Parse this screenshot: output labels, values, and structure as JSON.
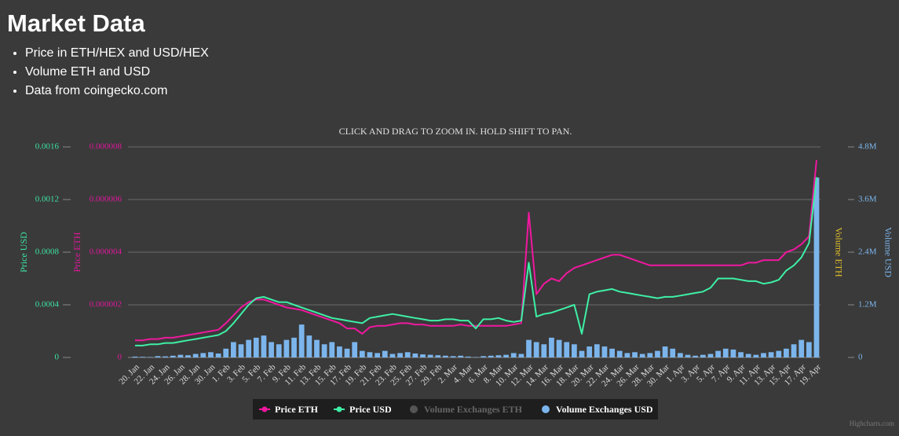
{
  "header": {
    "title": "Market Data",
    "bullets": [
      "Price in ETH/HEX and USD/HEX",
      "Volume ETH and USD",
      "Data from coingecko.com"
    ]
  },
  "chart_data": {
    "type": "line-bar-combo",
    "subtitle": "CLICK AND DRAG TO ZOOM IN. HOLD SHIFT TO PAN.",
    "credits": "Highcharts.com",
    "categories": [
      "20. Jan",
      null,
      "22. Jan",
      null,
      "24. Jan",
      null,
      "26. Jan",
      null,
      "28. Jan",
      null,
      "30. Jan",
      null,
      "1. Feb",
      null,
      "3. Feb",
      null,
      "5. Feb",
      null,
      "7. Feb",
      null,
      "9. Feb",
      null,
      "11. Feb",
      null,
      "13. Feb",
      null,
      "15. Feb",
      null,
      "17. Feb",
      null,
      "19. Feb",
      null,
      "21. Feb",
      null,
      "23. Feb",
      null,
      "25. Feb",
      null,
      "27. Feb",
      null,
      "29. Feb",
      null,
      "2. Mar",
      null,
      "4. Mar",
      null,
      "6. Mar",
      null,
      "8. Mar",
      null,
      "10. Mar",
      null,
      "12. Mar",
      null,
      "14. Mar",
      null,
      "16. Mar",
      null,
      "18. Mar",
      null,
      "20. Mar",
      null,
      "22. Mar",
      null,
      "24. Mar",
      null,
      "26. Mar",
      null,
      "28. Mar",
      null,
      "30. Mar",
      null,
      "1. Apr",
      null,
      "3. Apr",
      null,
      "5. Apr",
      null,
      "7. Apr",
      null,
      "9. Apr",
      null,
      "11. Apr",
      null,
      "13. Apr",
      null,
      "15. Apr",
      null,
      "17. Apr",
      null,
      "19. Apr"
    ],
    "ylabel": "Price USD",
    "ylim": [
      0,
      0.0016
    ],
    "yticks": [
      0,
      0.0004,
      0.0008,
      0.0012,
      0.0016
    ],
    "ycolor": "#3ee3a3",
    "y2label": "Price ETH",
    "y2lim": [
      0,
      8e-06
    ],
    "y2ticks": [
      0,
      2e-06,
      4e-06,
      6e-06,
      8e-06
    ],
    "y2color": "#e0179c",
    "y3label": "Volume USD",
    "y3lim": [
      0,
      4800000
    ],
    "y3ticks": [
      0,
      {
        "value": 1200000,
        "label": "1.2M"
      },
      {
        "value": 2400000,
        "label": "2.4M"
      },
      {
        "value": 3600000,
        "label": "3.6M"
      },
      {
        "value": 4800000,
        "label": "4.8M"
      }
    ],
    "y3color": "#7cb5ec",
    "y4label": "Volume ETH",
    "y4color": "#e6c229",
    "grid": true,
    "series": [
      {
        "name": "Price ETH",
        "type": "line",
        "axis": "y2",
        "color": "#f0189f",
        "visible": true,
        "values": [
          6.5e-07,
          6.5e-07,
          7e-07,
          7e-07,
          7.5e-07,
          7.5e-07,
          8e-07,
          8.5e-07,
          9e-07,
          9.5e-07,
          1e-06,
          1.05e-06,
          1.3e-06,
          1.6e-06,
          1.9e-06,
          2.1e-06,
          2.2e-06,
          2.2e-06,
          2.1e-06,
          2e-06,
          1.9e-06,
          1.85e-06,
          1.8e-06,
          1.7e-06,
          1.6e-06,
          1.5e-06,
          1.4e-06,
          1.3e-06,
          1.1e-06,
          1.1e-06,
          9e-07,
          1.15e-06,
          1.2e-06,
          1.2e-06,
          1.25e-06,
          1.3e-06,
          1.3e-06,
          1.25e-06,
          1.25e-06,
          1.2e-06,
          1.2e-06,
          1.2e-06,
          1.2e-06,
          1.25e-06,
          1.2e-06,
          1.2e-06,
          1.2e-06,
          1.2e-06,
          1.2e-06,
          1.2e-06,
          1.25e-06,
          1.3e-06,
          5.5e-06,
          2.4e-06,
          2.8e-06,
          3e-06,
          2.9e-06,
          3.2e-06,
          3.4e-06,
          3.5e-06,
          3.6e-06,
          3.7e-06,
          3.8e-06,
          3.9e-06,
          3.9e-06,
          3.8e-06,
          3.7e-06,
          3.6e-06,
          3.5e-06,
          3.5e-06,
          3.5e-06,
          3.5e-06,
          3.5e-06,
          3.5e-06,
          3.5e-06,
          3.5e-06,
          3.5e-06,
          3.5e-06,
          3.5e-06,
          3.5e-06,
          3.5e-06,
          3.6e-06,
          3.6e-06,
          3.7e-06,
          3.7e-06,
          3.7e-06,
          4e-06,
          4.1e-06,
          4.3e-06,
          4.6e-06,
          7.5e-06
        ]
      },
      {
        "name": "Price USD",
        "type": "line",
        "axis": "y",
        "color": "#3ef0a6",
        "visible": true,
        "values": [
          9e-05,
          9e-05,
          0.0001,
          0.0001,
          0.00011,
          0.00011,
          0.00012,
          0.00013,
          0.00014,
          0.00015,
          0.00016,
          0.00017,
          0.0002,
          0.00026,
          0.00033,
          0.0004,
          0.00045,
          0.00046,
          0.00044,
          0.00042,
          0.00042,
          0.0004,
          0.00038,
          0.00036,
          0.00034,
          0.00032,
          0.0003,
          0.00029,
          0.00028,
          0.00027,
          0.00026,
          0.0003,
          0.00031,
          0.00032,
          0.00033,
          0.00032,
          0.00031,
          0.0003,
          0.00029,
          0.00028,
          0.00028,
          0.00029,
          0.00029,
          0.00028,
          0.00028,
          0.00022,
          0.00029,
          0.00029,
          0.0003,
          0.00028,
          0.00027,
          0.00028,
          0.00072,
          0.00031,
          0.00033,
          0.00034,
          0.00036,
          0.00038,
          0.0004,
          0.00018,
          0.00048,
          0.0005,
          0.00051,
          0.00052,
          0.0005,
          0.00049,
          0.00048,
          0.00047,
          0.00046,
          0.00045,
          0.00046,
          0.00046,
          0.00047,
          0.00048,
          0.00049,
          0.0005,
          0.00053,
          0.0006,
          0.0006,
          0.0006,
          0.00059,
          0.00058,
          0.00058,
          0.00056,
          0.00057,
          0.00059,
          0.00066,
          0.0007,
          0.00076,
          0.00087,
          0.00137
        ]
      },
      {
        "name": "Volume Exchanges ETH",
        "type": "bar",
        "axis": "y4",
        "color": "#666666",
        "visible": false
      },
      {
        "name": "Volume Exchanges USD",
        "type": "bar",
        "axis": "y3",
        "color": "#7cb5ec",
        "visible": true,
        "values": [
          20000,
          15000,
          10000,
          30000,
          25000,
          40000,
          60000,
          50000,
          80000,
          100000,
          120000,
          90000,
          200000,
          350000,
          300000,
          400000,
          450000,
          500000,
          350000,
          300000,
          400000,
          450000,
          750000,
          500000,
          400000,
          300000,
          350000,
          250000,
          200000,
          350000,
          150000,
          120000,
          100000,
          150000,
          80000,
          100000,
          120000,
          90000,
          70000,
          60000,
          50000,
          40000,
          30000,
          40000,
          20000,
          10000,
          30000,
          40000,
          50000,
          60000,
          100000,
          80000,
          400000,
          350000,
          300000,
          450000,
          400000,
          350000,
          300000,
          150000,
          250000,
          300000,
          250000,
          200000,
          150000,
          100000,
          120000,
          80000,
          100000,
          150000,
          250000,
          200000,
          100000,
          60000,
          40000,
          60000,
          80000,
          150000,
          200000,
          180000,
          120000,
          80000,
          60000,
          100000,
          120000,
          150000,
          200000,
          300000,
          400000,
          350000,
          4100000
        ]
      }
    ]
  }
}
